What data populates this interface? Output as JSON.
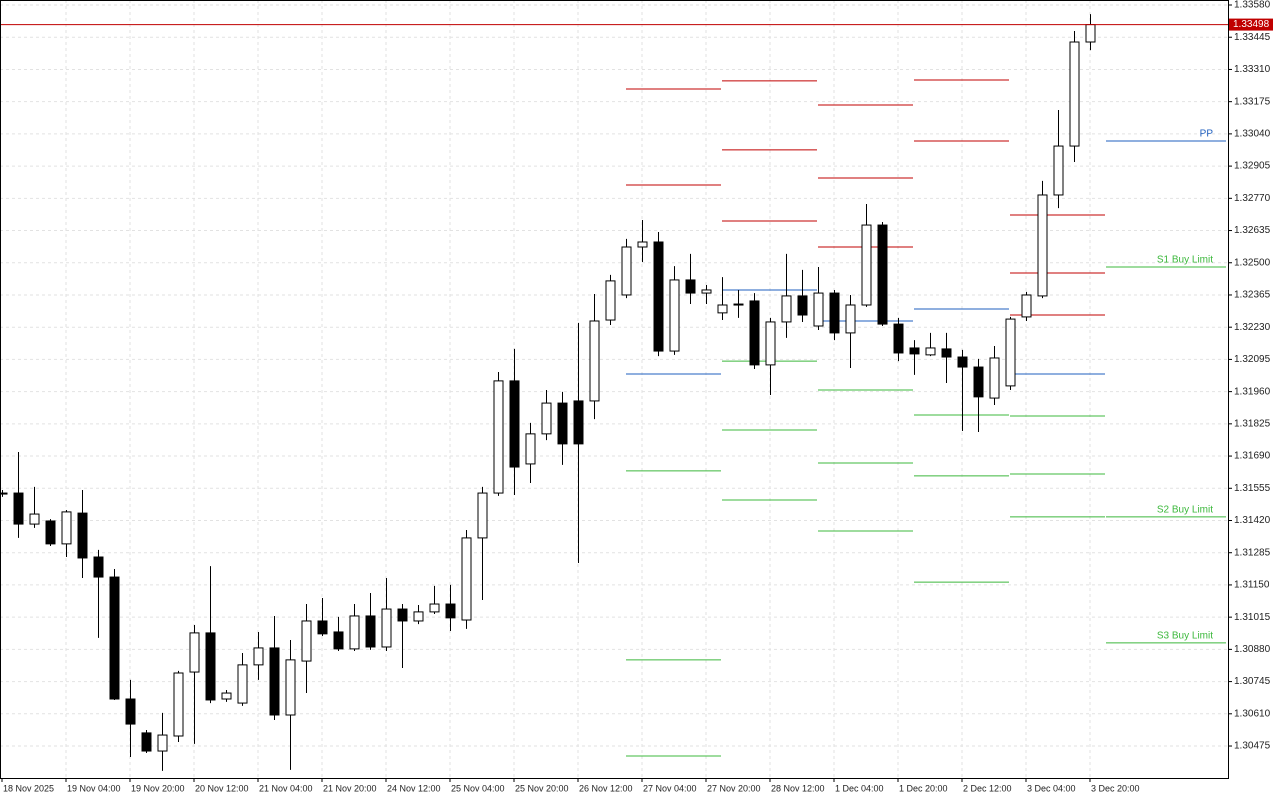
{
  "chart_data": {
    "type": "candlestick",
    "categories": [
      "18 Nov 2025",
      null,
      null,
      null,
      "19 Nov 04:00",
      null,
      null,
      null,
      "19 Nov 20:00",
      null,
      null,
      null,
      "20 Nov 12:00",
      null,
      null,
      null,
      "21 Nov 04:00",
      null,
      null,
      null,
      "21 Nov 20:00",
      null,
      null,
      null,
      "24 Nov 12:00",
      null,
      null,
      null,
      "25 Nov 04:00",
      null,
      null,
      null,
      "25 Nov 20:00",
      null,
      null,
      null,
      "26 Nov 12:00",
      null,
      null,
      null,
      "27 Nov 04:00",
      null,
      null,
      null,
      "27 Nov 20:00",
      null,
      null,
      null,
      "28 Nov 12:00",
      null,
      null,
      null,
      "1 Dec 04:00",
      null,
      null,
      null,
      "1 Dec 20:00",
      null,
      null,
      null,
      "2 Dec 12:00",
      null,
      null,
      null,
      "3 Dec 04:00",
      null,
      null,
      null,
      "3 Dec 20:00"
    ],
    "open": [
      1.31535,
      1.31535,
      1.31405,
      1.31418,
      1.31322,
      1.31451,
      1.31267,
      1.31183,
      1.30672,
      1.3053,
      1.30454,
      1.30517,
      1.30785,
      1.30949,
      1.30672,
      1.30655,
      1.30815,
      1.30886,
      1.30605,
      1.30831,
      1.30999,
      1.30953,
      1.30882,
      1.3102,
      1.3089,
      1.31049,
      1.30999,
      1.31037,
      1.3107,
      1.31003,
      1.31347,
      1.31535,
      1.32005,
      1.31657,
      1.31783,
      1.31912,
      1.31921,
      1.31921,
      1.3226,
      1.32365,
      1.32566,
      1.32587,
      1.3213,
      1.32428,
      1.32373,
      1.3229,
      1.32323,
      1.3234,
      1.32072,
      1.32252,
      1.32361,
      1.32235,
      1.32373,
      1.32206,
      1.32323,
      1.32658,
      1.32243,
      1.32143,
      1.32114,
      1.32139,
      1.32105,
      1.32063,
      1.31933,
      1.31984,
      1.32273,
      1.32361,
      1.32784,
      1.32989,
      1.33425
    ],
    "high": [
      1.31548,
      1.31707,
      1.31561,
      1.31426,
      1.31464,
      1.31548,
      1.31297,
      1.31217,
      1.30752,
      1.30542,
      1.30614,
      1.3079,
      1.30982,
      1.31229,
      1.3071,
      1.30865,
      1.30953,
      1.3102,
      1.30919,
      1.3107,
      1.31095,
      1.31016,
      1.3107,
      1.31116,
      1.31179,
      1.3107,
      1.31066,
      1.31146,
      1.3115,
      1.3138,
      1.31561,
      1.32042,
      1.32139,
      1.31829,
      1.31967,
      1.31959,
      1.32248,
      1.32369,
      1.32449,
      1.326,
      1.32679,
      1.32629,
      1.32486,
      1.32537,
      1.32407,
      1.3244,
      1.32386,
      1.32373,
      1.32269,
      1.32537,
      1.3247,
      1.32482,
      1.32386,
      1.32365,
      1.32746,
      1.32671,
      1.32269,
      1.32176,
      1.32206,
      1.32206,
      1.32135,
      1.32097,
      1.32151,
      1.32273,
      1.32378,
      1.32843,
      1.3314,
      1.33471,
      1.33542
    ],
    "low": [
      1.31519,
      1.31347,
      1.31389,
      1.31313,
      1.31267,
      1.31179,
      1.30928,
      1.30668,
      1.30429,
      1.30446,
      1.30371,
      1.30492,
      1.30484,
      1.30655,
      1.3066,
      1.30643,
      1.30752,
      1.30584,
      1.30375,
      1.30697,
      1.30936,
      1.30873,
      1.30873,
      1.30878,
      1.30873,
      1.30802,
      1.30986,
      1.31028,
      1.30957,
      1.30966,
      1.31087,
      1.31523,
      1.31527,
      1.31577,
      1.31757,
      1.31653,
      1.31242,
      1.31845,
      1.32239,
      1.32352,
      1.32503,
      1.32109,
      1.32114,
      1.32327,
      1.32327,
      1.3226,
      1.32269,
      1.32055,
      1.31946,
      1.32185,
      1.32252,
      1.32218,
      1.32176,
      1.32059,
      1.32315,
      1.32235,
      1.32088,
      1.3203,
      1.32109,
      1.31996,
      1.31795,
      1.31791,
      1.31904,
      1.31967,
      1.32256,
      1.32352,
      1.32729,
      1.32922,
      1.33391
    ],
    "close": [
      1.31531,
      1.31405,
      1.31447,
      1.31322,
      1.31456,
      1.31263,
      1.31183,
      1.30672,
      1.30567,
      1.30454,
      1.30521,
      1.30781,
      1.30949,
      1.30668,
      1.30697,
      1.30815,
      1.30886,
      1.30605,
      1.30836,
      1.30999,
      1.30945,
      1.30882,
      1.3102,
      1.3089,
      1.31049,
      1.30999,
      1.31037,
      1.3107,
      1.31012,
      1.31347,
      1.31535,
      1.32005,
      1.31644,
      1.31783,
      1.31912,
      1.31741,
      1.31741,
      1.32256,
      1.32424,
      1.32566,
      1.32587,
      1.3213,
      1.32428,
      1.32373,
      1.32386,
      1.32323,
      1.32327,
      1.32072,
      1.32252,
      1.32361,
      1.32281,
      1.32373,
      1.32206,
      1.32323,
      1.32658,
      1.32243,
      1.32122,
      1.32118,
      1.32143,
      1.32105,
      1.32063,
      1.31938,
      1.32101,
      1.32264,
      1.32365,
      1.32784,
      1.32989,
      1.33425,
      1.33498
    ],
    "up_color": "#ffffff",
    "down_color": "#000000",
    "ylim": [
      1.30341,
      1.33601
    ],
    "yticks": [
      {
        "value": 1.3358,
        "label": "1.33580"
      },
      1.33445,
      {
        "value": 1.3331,
        "label": "1.33310"
      },
      1.33175,
      {
        "value": 1.3304,
        "label": "1.33040"
      },
      1.32905,
      {
        "value": 1.3277,
        "label": "1.32770"
      },
      1.32635,
      {
        "value": 1.325,
        "label": "1.32500"
      },
      1.32365,
      {
        "value": 1.3223,
        "label": "1.32230"
      },
      1.32095,
      {
        "value": 1.3196,
        "label": "1.31960"
      },
      1.31825,
      {
        "value": 1.3169,
        "label": "1.31690"
      },
      1.31555,
      {
        "value": 1.3142,
        "label": "1.31420"
      },
      1.31285,
      {
        "value": 1.3115,
        "label": "1.31150"
      },
      1.31015,
      {
        "value": 1.3088,
        "label": "1.30880"
      },
      1.30745,
      {
        "value": 1.3061,
        "label": "1.30610"
      },
      1.30475
    ],
    "grid": true,
    "last_price": 1.33498,
    "last_price_color": "#c00000",
    "resistance_color": "#c00000",
    "pivot_color": "#1f5fbf",
    "support_color": "#3cb83c",
    "pivot_levels": [
      {
        "resistance": [
          1.33228,
          1.32826
        ],
        "pivot": 1.32034,
        "support": [
          1.31628,
          1.30836,
          1.30433
        ]
      },
      {
        "resistance": [
          1.33262,
          1.32973,
          1.32675
        ],
        "pivot": 1.32386,
        "support": [
          1.32088,
          1.31799,
          1.31506
        ]
      },
      {
        "resistance": [
          1.33161,
          1.32855,
          1.32566
        ],
        "pivot": 1.32256,
        "support": [
          1.31967,
          1.31661,
          1.31376
        ]
      },
      {
        "resistance": [
          1.33266,
          1.3301
        ],
        "pivot": 1.32306,
        "support": [
          1.31862,
          1.31607,
          1.31162
        ]
      },
      {
        "resistance": [
          1.327,
          1.32457,
          1.32281
        ],
        "pivot": 1.32034,
        "support": [
          1.31858,
          1.31615,
          1.31435
        ]
      }
    ],
    "pivot_current": {
      "pivot": {
        "label": "PP",
        "value": 1.3301
      },
      "support": [
        {
          "label": "S1 Buy Limit",
          "value": 1.32482
        },
        {
          "label": "S2 Buy Limit",
          "value": 1.31435
        },
        {
          "label": "S3 Buy Limit",
          "value": 1.30907
        }
      ]
    }
  }
}
